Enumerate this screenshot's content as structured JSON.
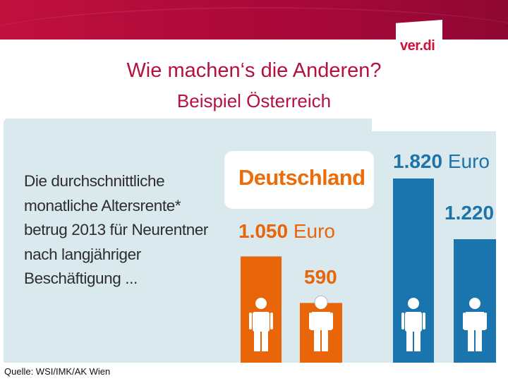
{
  "header": {
    "logo_text": "ver.di",
    "title": "Wie machen‘s die Anderen?",
    "subtitle": "Beispiel Österreich"
  },
  "description": "Die durchschnittliche\nmonatliche Altersrente*\nbetrug 2013 für Neurentner\nnach langjähriger\nBeschäftigung ...",
  "country_label": "Deutschland",
  "chart_data": {
    "type": "bar",
    "title": "Wie machen‘s die Anderen? Beispiel Österreich",
    "categories": [
      "Deutschland (Männer)",
      "Deutschland (Frauen)",
      "Österreich (Männer)",
      "Österreich (Frauen)"
    ],
    "values": [
      1050,
      590,
      1820,
      1220
    ],
    "labels": [
      {
        "number": "1.050",
        "unit": "Euro"
      },
      {
        "number": "590",
        "unit": ""
      },
      {
        "number": "1.820",
        "unit": "Euro"
      },
      {
        "number": "1.220",
        "unit": ""
      }
    ],
    "colors": [
      "#e8650a",
      "#e8650a",
      "#1a74ad",
      "#1a74ad"
    ],
    "unit": "Euro",
    "ylim": [
      0,
      1820
    ],
    "legend": "none"
  },
  "source": "Quelle: WSI/IMK/AK Wien",
  "colors": {
    "brand": "#b5113f",
    "panel": "#d9e9ee",
    "germany": "#e8650a",
    "austria": "#1a74ad"
  }
}
